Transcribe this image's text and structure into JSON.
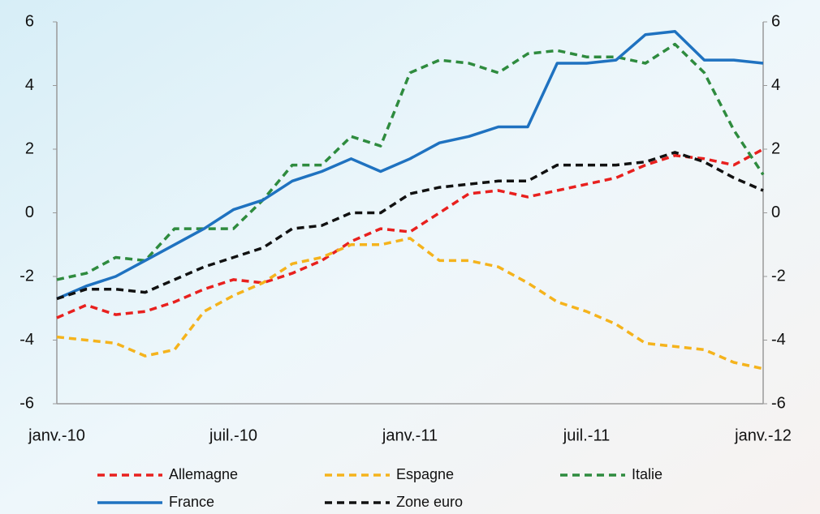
{
  "chart_data": {
    "type": "line",
    "categories": [
      "janv.-10",
      null,
      null,
      null,
      null,
      null,
      "juil.-10",
      null,
      null,
      null,
      null,
      null,
      "janv.-11",
      null,
      null,
      null,
      null,
      null,
      "juil.-11",
      null,
      null,
      null,
      null,
      null,
      "janv.-12"
    ],
    "ylim": [
      -6,
      6
    ],
    "yticks": [
      -6,
      -4,
      -2,
      0,
      2,
      4,
      6
    ],
    "y2lim": [
      -6,
      6
    ],
    "y2ticks": [
      -6,
      -4,
      -2,
      0,
      2,
      4,
      6
    ],
    "series": [
      {
        "name": "Allemagne",
        "color": "#e8201e",
        "dashed": true,
        "values": [
          -3.3,
          -2.9,
          -3.2,
          -3.1,
          -2.8,
          -2.4,
          -2.1,
          -2.2,
          -1.9,
          -1.5,
          -0.9,
          -0.5,
          -0.6,
          0.0,
          0.6,
          0.7,
          0.5,
          0.7,
          0.9,
          1.1,
          1.5,
          1.8,
          1.7,
          1.5,
          2.0
        ]
      },
      {
        "name": "Espagne",
        "color": "#f5b31c",
        "dashed": true,
        "values": [
          -3.9,
          -4.0,
          -4.1,
          -4.5,
          -4.3,
          -3.1,
          -2.6,
          -2.2,
          -1.6,
          -1.4,
          -1.0,
          -1.0,
          -0.8,
          -1.5,
          -1.5,
          -1.7,
          -2.2,
          -2.8,
          -3.1,
          -3.5,
          -4.1,
          -4.2,
          -4.3,
          -4.7,
          -4.9
        ]
      },
      {
        "name": "Italie",
        "color": "#2e8b3e",
        "dashed": true,
        "values": [
          -2.1,
          -1.9,
          -1.4,
          -1.5,
          -0.5,
          -0.5,
          -0.5,
          0.4,
          1.5,
          1.5,
          2.4,
          2.1,
          4.4,
          4.8,
          4.7,
          4.4,
          5.0,
          5.1,
          4.9,
          4.9,
          4.7,
          5.3,
          4.4,
          2.6,
          1.2
        ]
      },
      {
        "name": "France",
        "color": "#1f72c0",
        "dashed": false,
        "values": [
          -2.7,
          -2.3,
          -2.0,
          -1.5,
          -1.0,
          -0.5,
          0.1,
          0.4,
          1.0,
          1.3,
          1.7,
          1.3,
          1.7,
          2.2,
          2.4,
          2.7,
          2.7,
          4.7,
          4.7,
          4.8,
          5.6,
          5.7,
          4.8,
          4.8,
          4.7
        ]
      },
      {
        "name": "Zone euro",
        "color": "#111111",
        "dashed": true,
        "values": [
          -2.7,
          -2.4,
          -2.4,
          -2.5,
          -2.1,
          -1.7,
          -1.4,
          -1.1,
          -0.5,
          -0.4,
          0.0,
          0.0,
          0.6,
          0.8,
          0.9,
          1.0,
          1.0,
          1.5,
          1.5,
          1.5,
          1.6,
          1.9,
          1.6,
          1.1,
          0.7
        ]
      }
    ]
  }
}
